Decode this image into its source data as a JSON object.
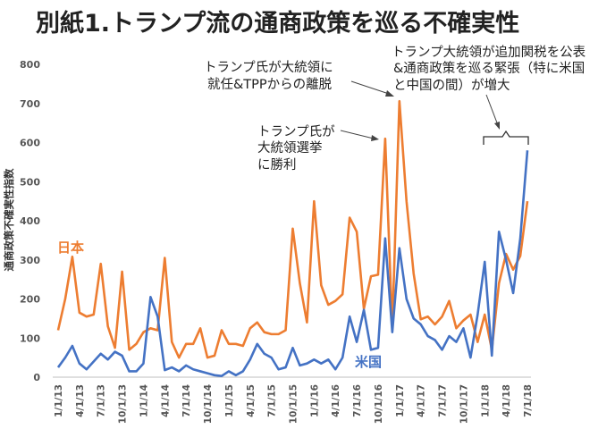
{
  "title": "別紙1.トランプ流の通商政策を巡る不確実性",
  "chart_data": {
    "type": "line",
    "ylabel": "通商政策不確実性指数",
    "ylim": [
      0,
      800
    ],
    "yticks": [
      0,
      100,
      200,
      300,
      400,
      500,
      600,
      700,
      800
    ],
    "grid": false,
    "x": [
      "1/1/13",
      "2/1/13",
      "3/1/13",
      "4/1/13",
      "5/1/13",
      "6/1/13",
      "7/1/13",
      "8/1/13",
      "9/1/13",
      "10/1/13",
      "11/1/13",
      "12/1/13",
      "1/1/14",
      "2/1/14",
      "3/1/14",
      "4/1/14",
      "5/1/14",
      "6/1/14",
      "7/1/14",
      "8/1/14",
      "9/1/14",
      "10/1/14",
      "11/1/14",
      "12/1/14",
      "1/1/15",
      "2/1/15",
      "3/1/15",
      "4/1/15",
      "5/1/15",
      "6/1/15",
      "7/1/15",
      "8/1/15",
      "9/1/15",
      "10/1/15",
      "11/1/15",
      "12/1/15",
      "1/1/16",
      "2/1/16",
      "3/1/16",
      "4/1/16",
      "5/1/16",
      "6/1/16",
      "7/1/16",
      "8/1/16",
      "9/1/16",
      "10/1/16",
      "11/1/16",
      "12/1/16",
      "1/1/17",
      "2/1/17",
      "3/1/17",
      "4/1/17",
      "5/1/17",
      "6/1/17",
      "7/1/17",
      "8/1/17",
      "9/1/17",
      "10/1/17",
      "11/1/17",
      "12/1/17",
      "1/1/18",
      "2/1/18",
      "3/1/18",
      "4/1/18",
      "5/1/18",
      "6/1/18",
      "7/1/18"
    ],
    "xtick_labels": [
      "1/1/13",
      "4/1/13",
      "7/1/13",
      "10/1/13",
      "1/1/14",
      "4/1/14",
      "7/1/14",
      "10/1/14",
      "1/1/15",
      "4/1/15",
      "7/1/15",
      "10/1/15",
      "1/1/16",
      "4/1/16",
      "7/1/16",
      "10/1/16",
      "1/1/17",
      "4/1/17",
      "7/1/17",
      "10/1/17",
      "1/1/18",
      "4/1/18",
      "7/1/18"
    ],
    "series": [
      {
        "name": "日本",
        "color": "#ED7D31",
        "values": [
          120,
          200,
          308,
          165,
          155,
          160,
          290,
          130,
          75,
          270,
          70,
          85,
          115,
          125,
          120,
          305,
          90,
          50,
          85,
          85,
          125,
          50,
          55,
          120,
          85,
          85,
          80,
          125,
          140,
          115,
          110,
          110,
          120,
          380,
          240,
          140,
          450,
          235,
          185,
          195,
          212,
          408,
          372,
          175,
          258,
          262,
          610,
          125,
          706,
          450,
          265,
          148,
          155,
          135,
          155,
          195,
          125,
          145,
          160,
          90,
          160,
          70,
          240,
          315,
          275,
          310,
          450
        ]
      },
      {
        "name": "米国",
        "color": "#4472C4",
        "values": [
          25,
          50,
          80,
          35,
          20,
          40,
          60,
          45,
          65,
          55,
          15,
          15,
          35,
          205,
          155,
          18,
          25,
          15,
          30,
          20,
          15,
          10,
          5,
          3,
          15,
          5,
          15,
          45,
          85,
          60,
          50,
          20,
          25,
          75,
          30,
          35,
          45,
          35,
          45,
          20,
          50,
          155,
          90,
          172,
          70,
          75,
          355,
          115,
          330,
          200,
          150,
          135,
          105,
          95,
          70,
          105,
          90,
          125,
          50,
          160,
          295,
          55,
          372,
          300,
          215,
          355,
          580
        ]
      }
    ],
    "annotations": [
      {
        "lines": [
          "トランプ氏が",
          "大統領選挙",
          "に勝利"
        ]
      },
      {
        "lines": [
          "トランプ氏が大統領に",
          "就任&TPPからの離脱"
        ]
      },
      {
        "lines": [
          "トランプ大統領が追加関税を公表",
          "&通商政策を巡る緊張（特に米国",
          "と中国の間）が増大"
        ]
      }
    ]
  }
}
